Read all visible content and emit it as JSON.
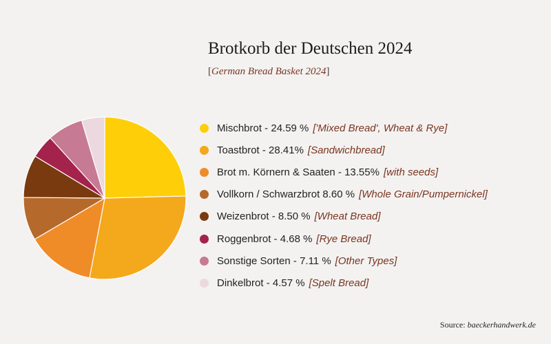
{
  "title": "Brotkorb der Deutschen 2024",
  "subtitle": {
    "open": "[",
    "text": "German Bread Basket 2024",
    "close": "]"
  },
  "source": {
    "prefix": "Source:",
    "text": "baeckerhandwerk.de"
  },
  "chart_data": {
    "type": "pie",
    "title": "Brotkorb der Deutschen 2024",
    "subtitle": "[German Bread Basket 2024]",
    "legend_placement": "right",
    "start_angle_deg": 0,
    "direction": "clockwise",
    "slices": [
      {
        "label": "Mischbrot - 24.59 %",
        "translation": "['Mixed Bread', Wheat & Rye]",
        "value": 24.59,
        "color": "#fecf08"
      },
      {
        "label": "Toastbrot - 28.41%",
        "translation": "[Sandwichbread]",
        "value": 28.41,
        "color": "#f4a81b"
      },
      {
        "label": "Brot m. Körnern & Saaten - 13.55%",
        "translation": "[with seeds]",
        "value": 13.55,
        "color": "#f08c28"
      },
      {
        "label": "Vollkorn / Schwarzbrot 8.60 %",
        "translation": "[Whole Grain/Pumpernickel]",
        "value": 8.6,
        "color": "#b5692a"
      },
      {
        "label": "Weizenbrot - 8.50 %",
        "translation": "[Wheat Bread]",
        "value": 8.5,
        "color": "#7a3a10"
      },
      {
        "label": "Roggenbrot - 4.68 %",
        "translation": "[Rye Bread]",
        "value": 4.68,
        "color": "#a3234c"
      },
      {
        "label": "Sonstige Sorten - 7.11 %",
        "translation": "[Other Types]",
        "value": 7.11,
        "color": "#c77a93"
      },
      {
        "label": "Dinkelbrot - 4.57 %",
        "translation": "[Spelt Bread]",
        "value": 4.57,
        "color": "#ecd9df"
      }
    ]
  }
}
